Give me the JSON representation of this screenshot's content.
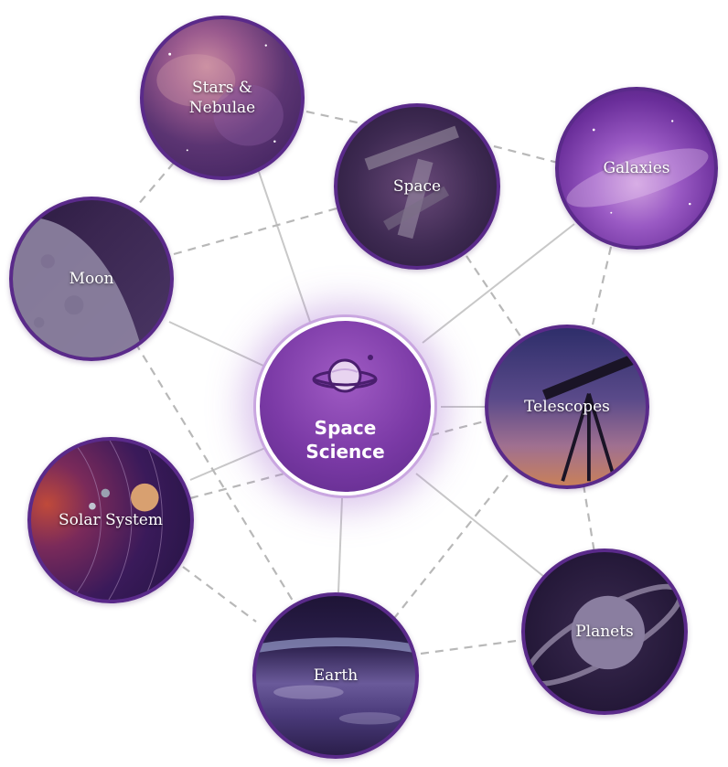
{
  "hub": {
    "title": "Space\nScience",
    "icon": "planet-icon",
    "colors": {
      "fill": "#7b3aa6",
      "ring": "#ffffff",
      "glow": "#c9a6e0"
    }
  },
  "topics": [
    {
      "id": "stars-nebulae",
      "label": "Stars &\nNebulae"
    },
    {
      "id": "space",
      "label": "Space"
    },
    {
      "id": "galaxies",
      "label": "Galaxies"
    },
    {
      "id": "moon",
      "label": "Moon"
    },
    {
      "id": "telescopes",
      "label": "Telescopes"
    },
    {
      "id": "solar-system",
      "label": "Solar System"
    },
    {
      "id": "planets",
      "label": "Planets"
    },
    {
      "id": "earth",
      "label": "Earth"
    }
  ],
  "colors": {
    "node_border": "#5a2a8a",
    "solid_connector": "#c8c8c8",
    "dashed_connector": "#b8b8b8"
  }
}
